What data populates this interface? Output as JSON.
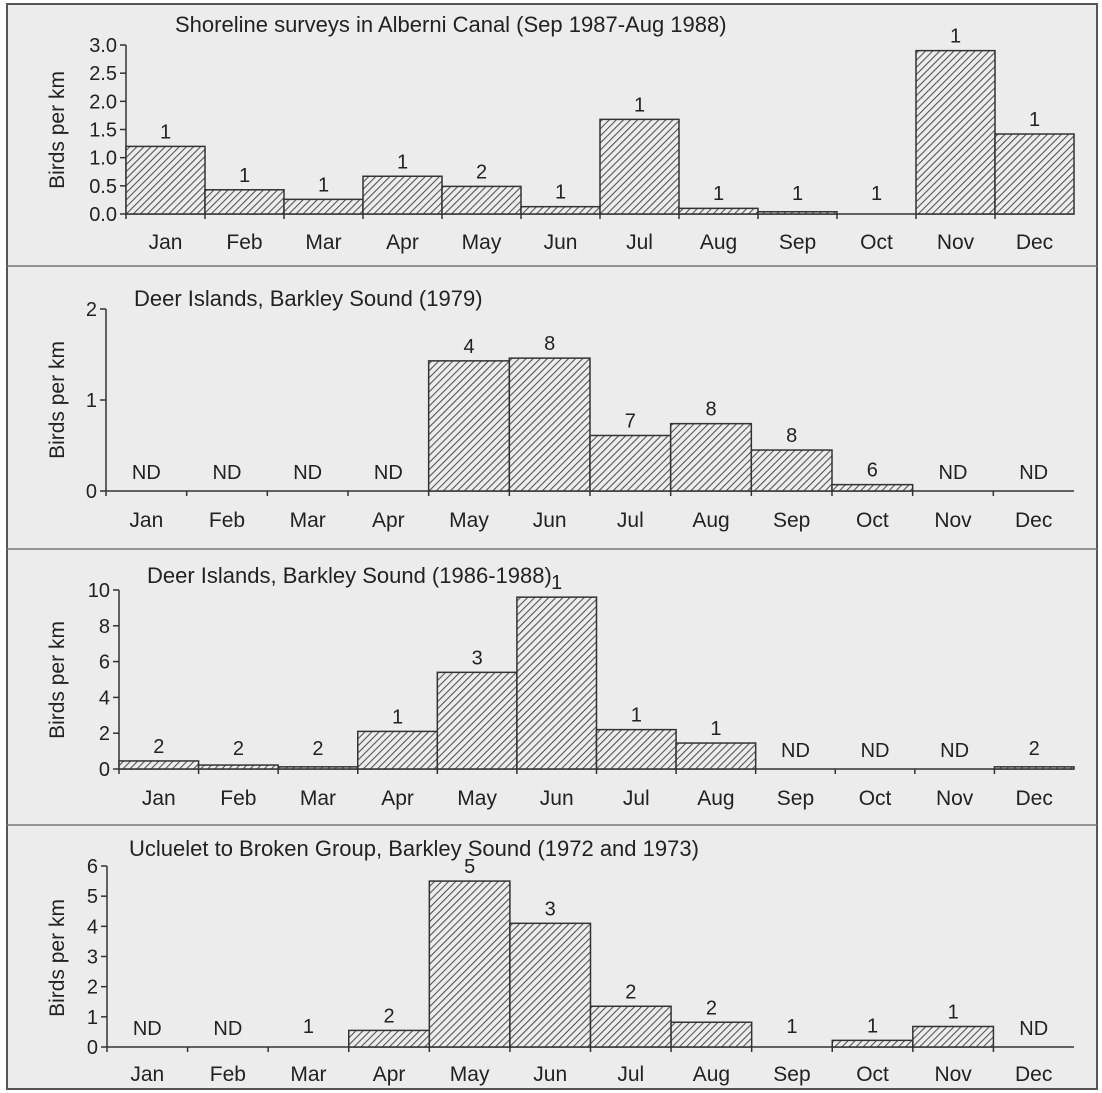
{
  "colors": {
    "background": "#ececec",
    "bar_stroke": "#333333",
    "hatch": "#555555",
    "text": "#222222"
  },
  "months": [
    "Jan",
    "Feb",
    "Mar",
    "Apr",
    "May",
    "Jun",
    "Jul",
    "Aug",
    "Sep",
    "Oct",
    "Nov",
    "Dec"
  ],
  "chart_data": [
    {
      "type": "bar",
      "title": "Shoreline surveys in Alberni Canal (Sep 1987-Aug 1988)",
      "ylabel": "Birds per km",
      "xlabel": "",
      "ylim": [
        0,
        3.0
      ],
      "yticks": [
        "0.0",
        "0.5",
        "1.0",
        "1.5",
        "2.0",
        "2.5",
        "3.0"
      ],
      "categories": [
        "Jan",
        "Feb",
        "Mar",
        "Apr",
        "May",
        "Jun",
        "Jul",
        "Aug",
        "Sep",
        "Oct",
        "Nov",
        "Dec"
      ],
      "values": [
        1.2,
        0.43,
        0.26,
        0.67,
        0.49,
        0.13,
        1.68,
        0.1,
        0.04,
        0.0,
        2.9,
        1.42
      ],
      "bar_labels": [
        "1",
        "1",
        "1",
        "1",
        "2",
        "1",
        "1",
        "1",
        "1",
        "1",
        "1",
        "1"
      ],
      "grid": false
    },
    {
      "type": "bar",
      "title": "Deer Islands, Barkley Sound (1979)",
      "ylabel": "Birds per km",
      "xlabel": "",
      "ylim": [
        0,
        2
      ],
      "yticks": [
        "0",
        "1",
        "2"
      ],
      "categories": [
        "Jan",
        "Feb",
        "Mar",
        "Apr",
        "May",
        "Jun",
        "Jul",
        "Aug",
        "Sep",
        "Oct",
        "Nov",
        "Dec"
      ],
      "values": [
        null,
        null,
        null,
        null,
        1.43,
        1.46,
        0.61,
        0.74,
        0.45,
        0.07,
        null,
        null
      ],
      "bar_labels": [
        "ND",
        "ND",
        "ND",
        "ND",
        "4",
        "8",
        "7",
        "8",
        "8",
        "6",
        "ND",
        "ND"
      ],
      "grid": false
    },
    {
      "type": "bar",
      "title": "Deer Islands, Barkley Sound (1986-1988)",
      "ylabel": "Birds per km",
      "xlabel": "",
      "ylim": [
        0,
        10
      ],
      "yticks": [
        "0",
        "2",
        "4",
        "6",
        "8",
        "10"
      ],
      "categories": [
        "Jan",
        "Feb",
        "Mar",
        "Apr",
        "May",
        "Jun",
        "Jul",
        "Aug",
        "Sep",
        "Oct",
        "Nov",
        "Dec"
      ],
      "values": [
        0.45,
        0.22,
        0.12,
        2.1,
        5.4,
        9.6,
        2.2,
        1.45,
        null,
        null,
        null,
        0.12
      ],
      "bar_labels": [
        "2",
        "2",
        "2",
        "1",
        "3",
        "1",
        "1",
        "1",
        "ND",
        "ND",
        "ND",
        "2"
      ],
      "grid": false
    },
    {
      "type": "bar",
      "title": "Ucluelet to Broken Group, Barkley Sound (1972 and 1973)",
      "ylabel": "Birds per km",
      "xlabel": "",
      "ylim": [
        0,
        6
      ],
      "yticks": [
        "0",
        "1",
        "2",
        "3",
        "4",
        "5",
        "6"
      ],
      "categories": [
        "Jan",
        "Feb",
        "Mar",
        "Apr",
        "May",
        "Jun",
        "Jul",
        "Aug",
        "Sep",
        "Oct",
        "Nov",
        "Dec"
      ],
      "values": [
        null,
        null,
        0.0,
        0.55,
        5.5,
        4.1,
        1.35,
        0.82,
        0.0,
        0.22,
        0.68,
        null
      ],
      "bar_labels": [
        "ND",
        "ND",
        "1",
        "2",
        "5",
        "3",
        "2",
        "2",
        "1",
        "1",
        "1",
        "ND"
      ],
      "grid": false
    }
  ]
}
